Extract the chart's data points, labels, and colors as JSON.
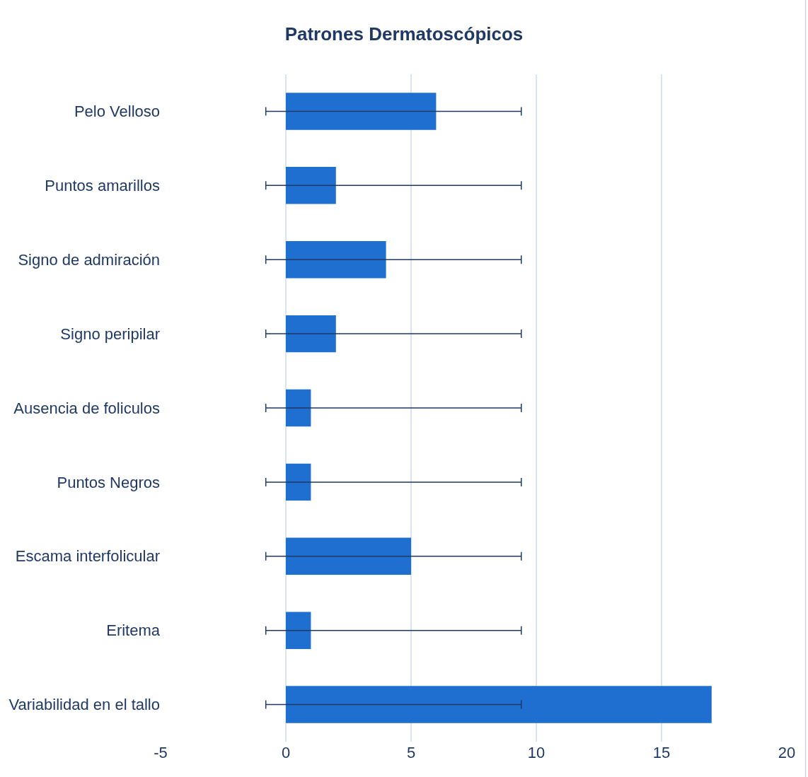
{
  "chart_data": {
    "type": "bar",
    "orientation": "horizontal",
    "title": "Patrones Dermatoscópicos",
    "categories": [
      "Pelo Velloso",
      "Puntos amarillos",
      "Signo de admiración",
      "Signo peripilar",
      "Ausencia de foliculos",
      "Puntos Negros",
      "Escama interfolicular",
      "Eritema",
      "Variabilidad en el tallo"
    ],
    "values": [
      6,
      2,
      4,
      2,
      1,
      1,
      5,
      1,
      17
    ],
    "errors": [
      [
        -0.8,
        9.4
      ],
      [
        -0.8,
        9.4
      ],
      [
        -0.8,
        9.4
      ],
      [
        -0.8,
        9.4
      ],
      [
        -0.8,
        9.4
      ],
      [
        -0.8,
        9.4
      ],
      [
        -0.8,
        9.4
      ],
      [
        -0.8,
        9.4
      ],
      [
        -0.8,
        9.4
      ]
    ],
    "color": "#1f6fd1",
    "xlim": [
      -5,
      20
    ],
    "xticks": [
      -5,
      0,
      5,
      10,
      15,
      20
    ],
    "grid": "x"
  }
}
